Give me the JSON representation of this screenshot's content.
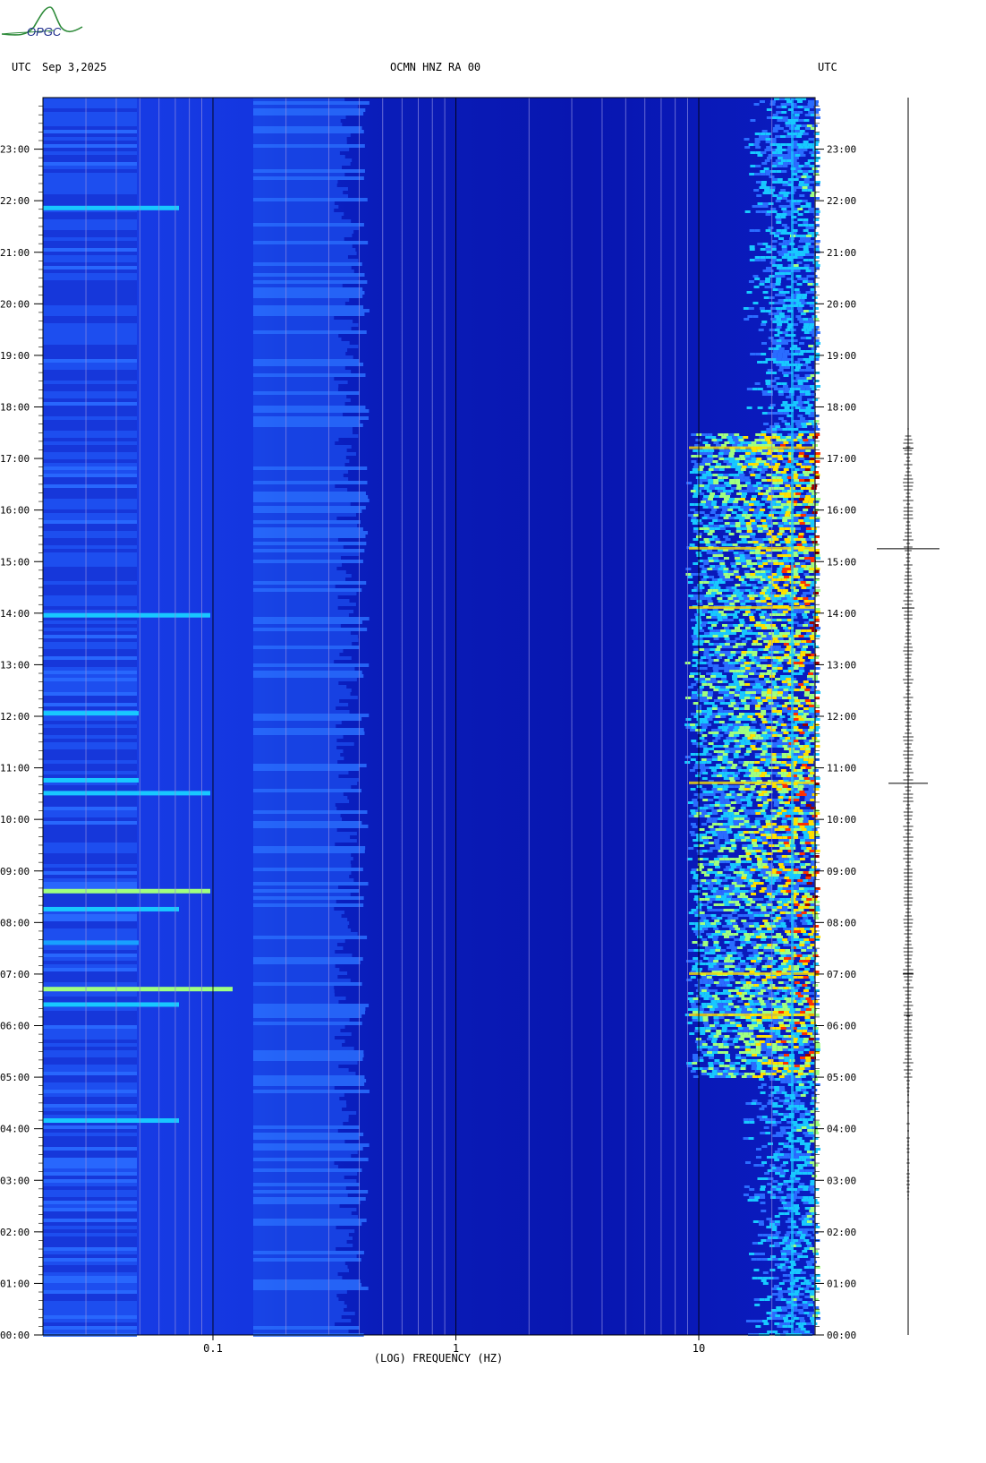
{
  "logo_text": "OPGC",
  "header": {
    "left_tz": "UTC",
    "date": "Sep 3,2025",
    "station": "OCMN HNZ RA 00",
    "right_tz": "UTC"
  },
  "chart_data": {
    "type": "heatmap",
    "title": "OCMN HNZ RA 00",
    "xlabel": "(LOG) FREQUENCY (HZ)",
    "x_scale": "log",
    "xlim": [
      0.023,
      2.9
    ],
    "x_ticks": [
      {
        "value": 0.1,
        "label": "0.1"
      },
      {
        "value": 1,
        "label": "1"
      },
      {
        "value": 10,
        "label": "10"
      }
    ],
    "ylim": [
      "00:00",
      "24:00"
    ],
    "y_ticks": [
      "00:00",
      "01:00",
      "02:00",
      "03:00",
      "04:00",
      "05:00",
      "06:00",
      "07:00",
      "08:00",
      "09:00",
      "10:00",
      "11:00",
      "12:00",
      "13:00",
      "14:00",
      "15:00",
      "16:00",
      "17:00",
      "18:00",
      "19:00",
      "20:00",
      "21:00",
      "22:00",
      "23:00"
    ],
    "colormap": [
      "#0000a0",
      "#1030e0",
      "#2a6cff",
      "#18c8ff",
      "#a0ff80",
      "#ffe000",
      "#ff3000",
      "#9a0000"
    ],
    "background_color": "#0a1fc8",
    "high_energy_band": {
      "freq_hz": [
        8,
        30
      ],
      "hours": [
        5,
        17.5
      ]
    },
    "trace": {
      "label": "seismogram",
      "events_utc_hours": [
        17.2,
        15.25,
        14.1,
        10.7,
        7.0,
        6.2
      ]
    }
  }
}
